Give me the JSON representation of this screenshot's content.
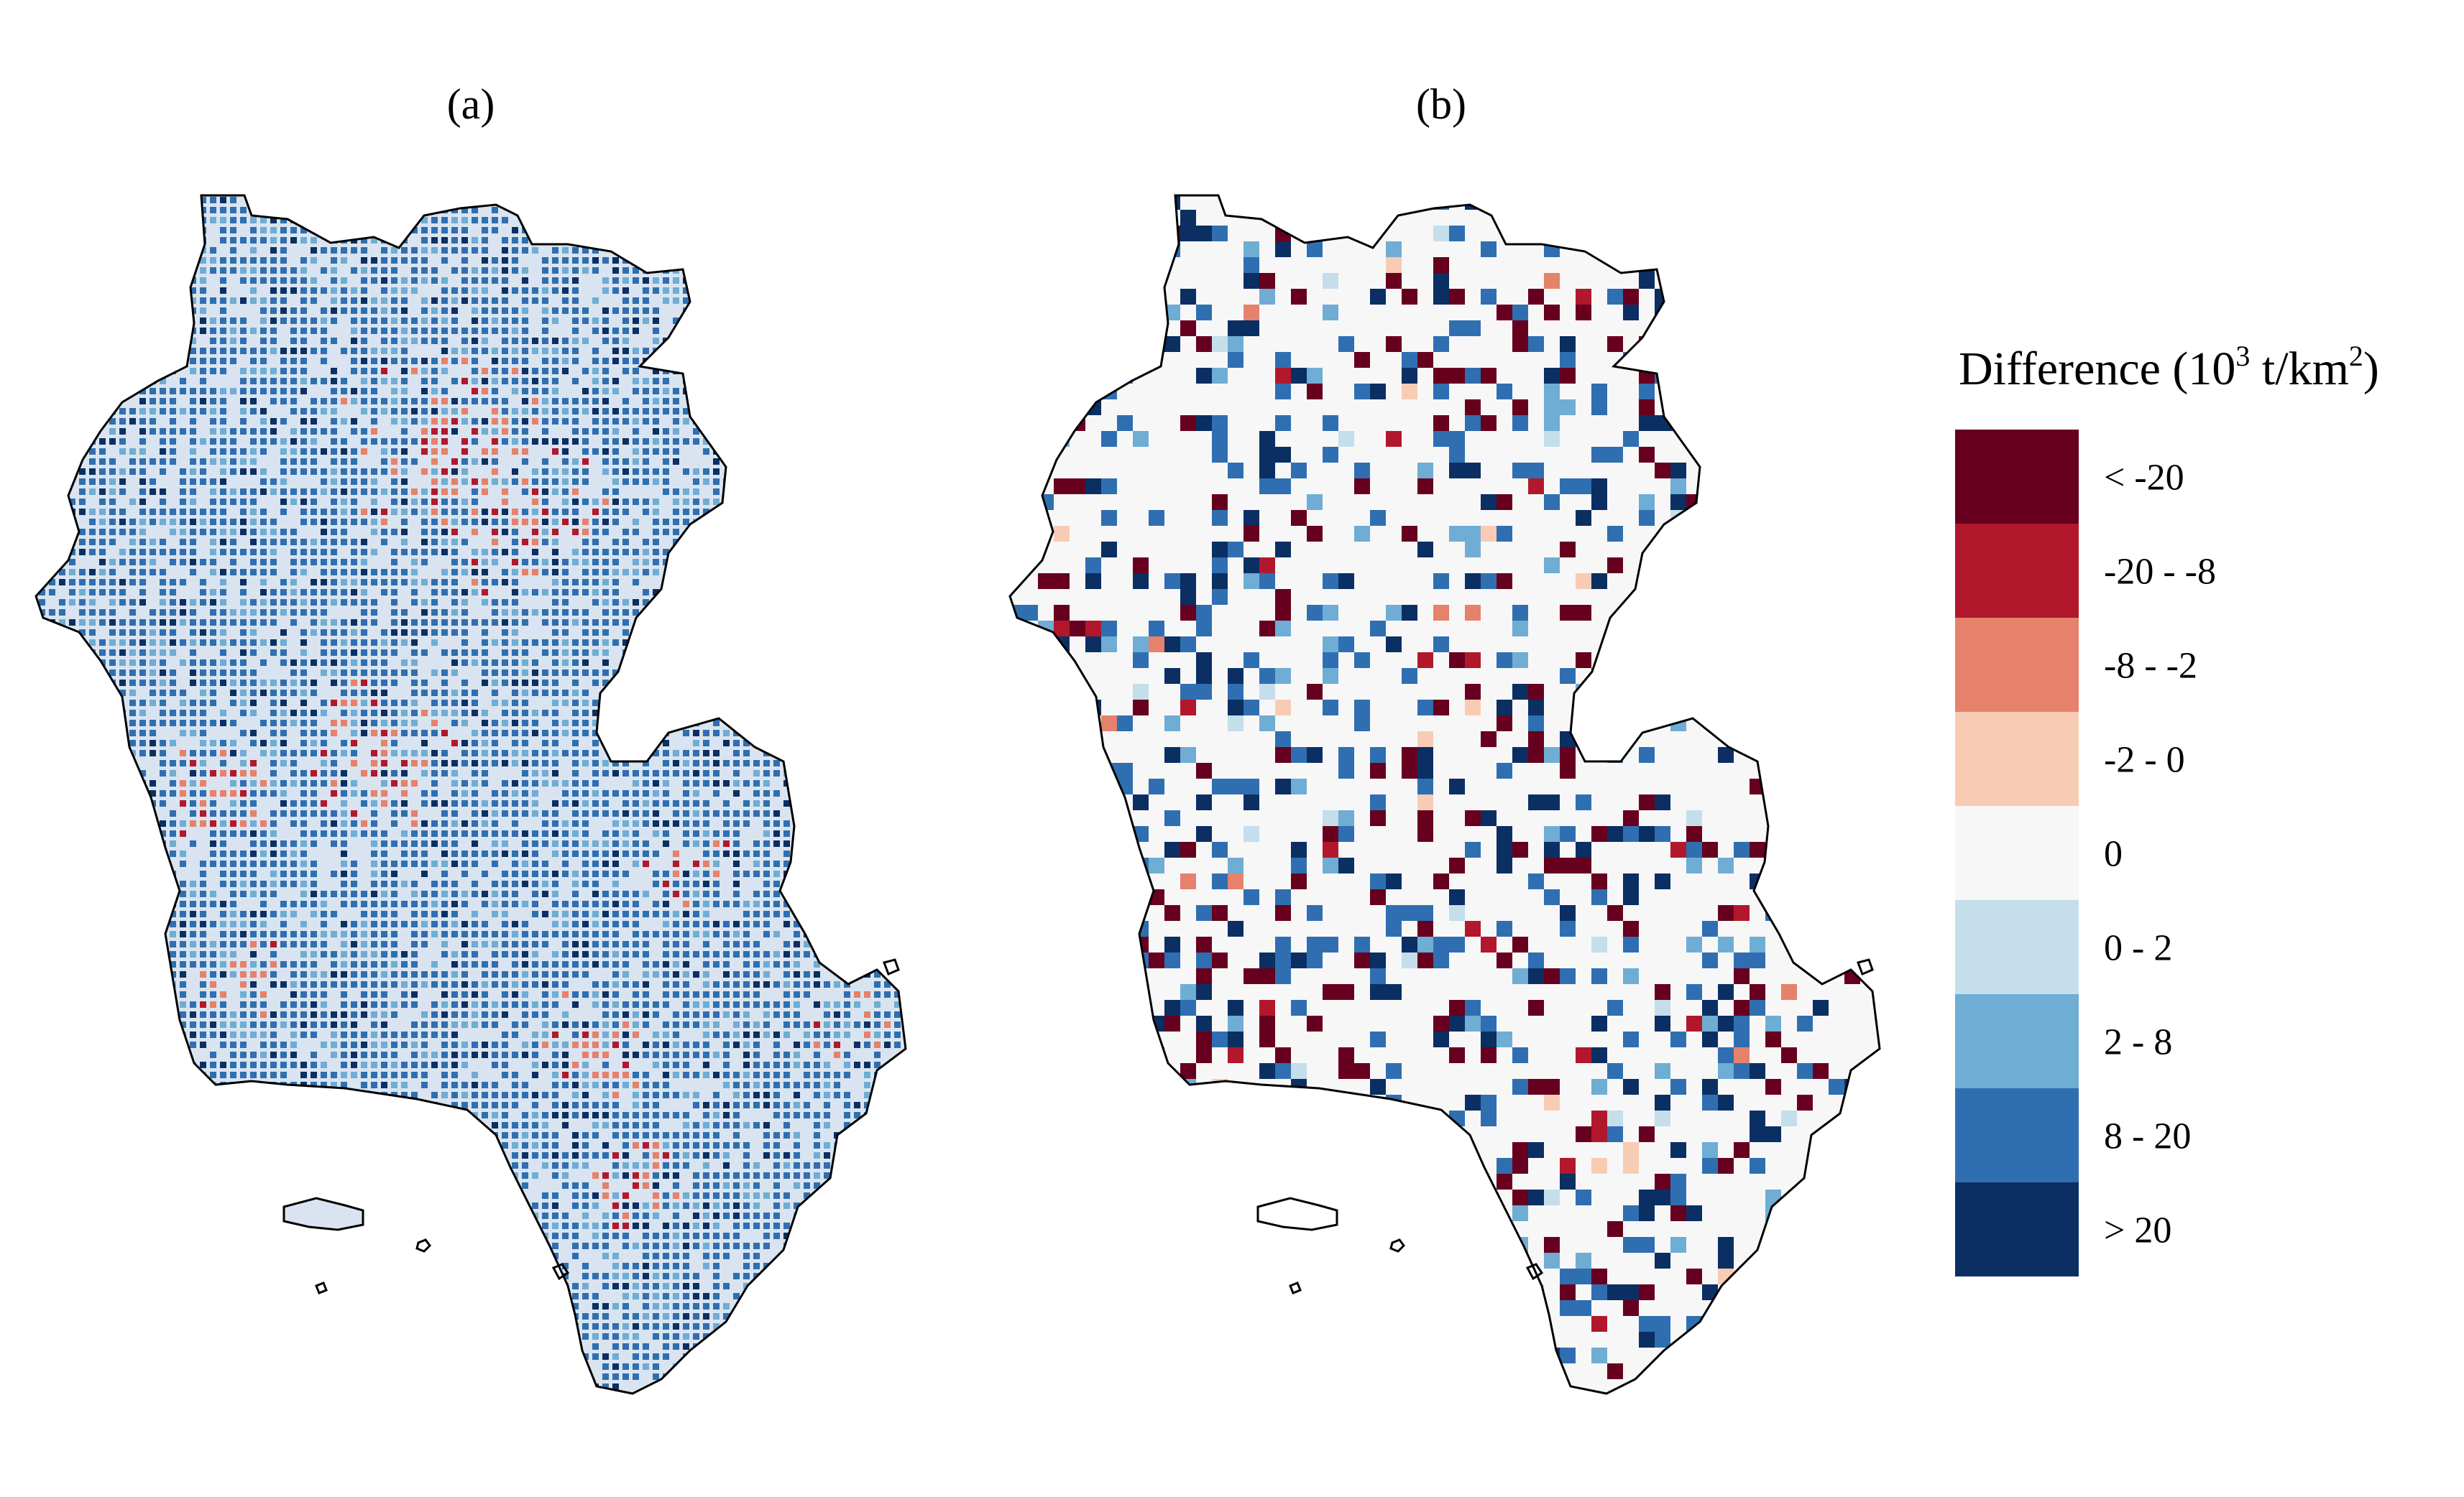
{
  "panels": {
    "a": {
      "label": "(a)"
    },
    "b": {
      "label": "(b)"
    }
  },
  "legend": {
    "title_main": "Difference (10",
    "title_exp1": "3",
    "title_mid": " t/km",
    "title_exp2": "2",
    "title_end": ")",
    "classes": [
      {
        "label": "< -20",
        "color": "#67001f"
      },
      {
        "label": "-20 - -8",
        "color": "#b2182b"
      },
      {
        "label": "-8 - -2",
        "color": "#e6816b"
      },
      {
        "label": "-2 - 0",
        "color": "#f8ccb4"
      },
      {
        "label": "0",
        "color": "#f7f7f7"
      },
      {
        "label": "0 - 2",
        "color": "#c4deec"
      },
      {
        "label": "2 - 8",
        "color": "#6fadd4"
      },
      {
        "label": "8 - 20",
        "color": "#2f6fb1"
      },
      {
        "label": "> 20",
        "color": "#0b2f63"
      }
    ]
  },
  "colors": {
    "outline": "#000000",
    "background_a": "#d9e4f0",
    "background_b": "#f7f7f7"
  }
}
